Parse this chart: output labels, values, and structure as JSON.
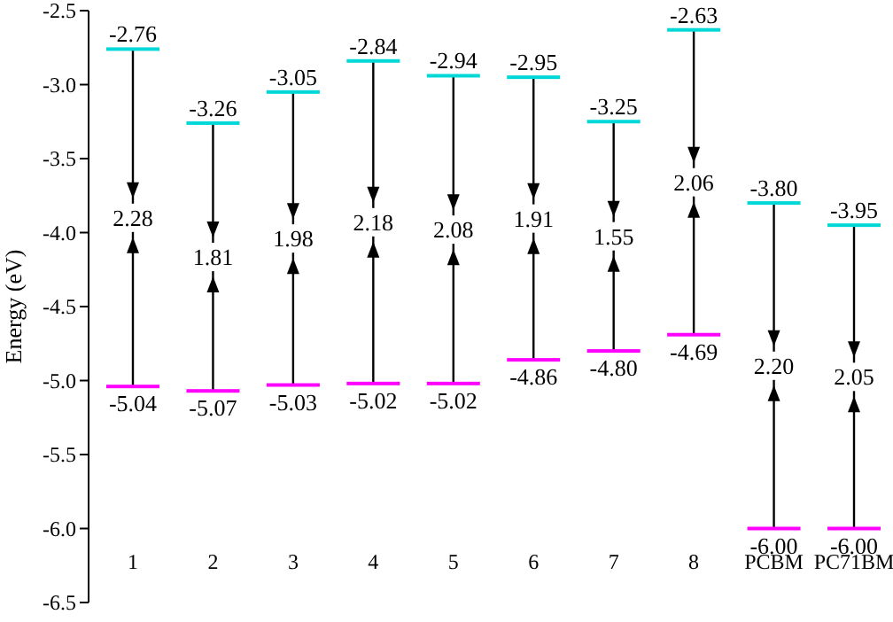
{
  "chart_data": {
    "type": "bar",
    "ylabel": "Energy (eV)",
    "categories": [
      "1",
      "2",
      "3",
      "4",
      "5",
      "6",
      "7",
      "8",
      "PCBM",
      "PC71BM"
    ],
    "ylim": [
      -6.5,
      -2.5
    ],
    "yticks": [
      -2.5,
      {
        "value": -3,
        "label": "-3.0"
      },
      -3.5,
      {
        "value": -4,
        "label": "-4.0"
      },
      -4.5,
      {
        "value": -5,
        "label": "-5.0"
      },
      -5.5,
      {
        "value": -6,
        "label": "-6.0"
      },
      -6.5
    ],
    "color": "#000000",
    "base": [
      -5.04,
      -5.07,
      -5.03,
      -5.02,
      -5.02,
      -4.86,
      -4.8,
      -4.69,
      -6.0,
      -6.0
    ],
    "values": [
      2.28,
      1.81,
      1.98,
      2.18,
      2.08,
      1.91,
      1.55,
      2.06,
      2.2,
      2.05
    ],
    "value_labels": [
      "2.28",
      "1.81",
      "1.98",
      "2.18",
      "2.08",
      "1.91",
      "1.55",
      "2.06",
      "2.20",
      "2.05"
    ],
    "annotations": [
      {
        "text": "-2.76",
        "x": "1",
        "y": -2.76
      },
      {
        "text": "-3.26",
        "x": "2",
        "y": -3.26
      },
      {
        "text": "-3.05",
        "x": "3",
        "y": -3.05
      },
      {
        "text": "-2.84",
        "x": "4",
        "y": -2.84
      },
      {
        "text": "-2.94",
        "x": "5",
        "y": -2.94
      },
      {
        "text": "-2.95",
        "x": "6",
        "y": -2.95
      },
      {
        "text": "-3.25",
        "x": "7",
        "y": -3.25
      },
      {
        "text": "-2.63",
        "x": "8",
        "y": -2.63
      },
      {
        "text": "-3.80",
        "x": "PCBM",
        "y": -3.8
      },
      {
        "text": "-3.95",
        "x": "PC71BM",
        "y": -3.95
      },
      {
        "text": "-5.04",
        "x": "1",
        "y": -5.04
      },
      {
        "text": "-5.07",
        "x": "2",
        "y": -5.07
      },
      {
        "text": "-5.03",
        "x": "3",
        "y": -5.03
      },
      {
        "text": "-5.02",
        "x": "4",
        "y": -5.02
      },
      {
        "text": "-5.02",
        "x": "5",
        "y": -5.02
      },
      {
        "text": "-4.86",
        "x": "6",
        "y": -4.86
      },
      {
        "text": "-4.80",
        "x": "7",
        "y": -4.8
      },
      {
        "text": "-4.69",
        "x": "8",
        "y": -4.69
      },
      {
        "text": "-6.00",
        "x": "PCBM",
        "y": -6.0
      },
      {
        "text": "-6.00",
        "x": "PC71BM",
        "y": -6.0
      }
    ]
  }
}
